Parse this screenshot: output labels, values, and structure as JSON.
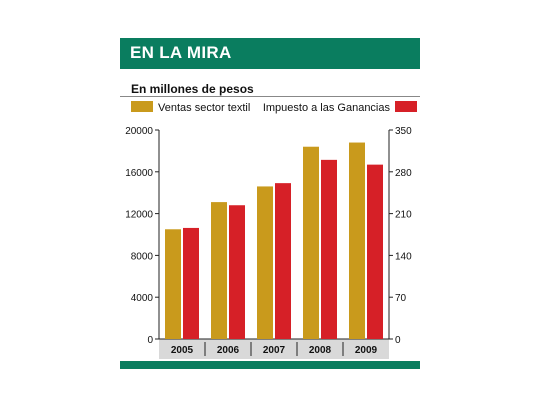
{
  "header": {
    "title": "EN LA MIRA"
  },
  "subtitle": "En millones de pesos",
  "colors": {
    "header": "#0a7d5f",
    "series1": "#c99a1c",
    "series2": "#d62027"
  },
  "chart_data": {
    "type": "bar",
    "title": "EN LA MIRA",
    "subtitle": "En millones de pesos",
    "categories": [
      "2005",
      "2006",
      "2007",
      "2008",
      "2009"
    ],
    "series": [
      {
        "name": "Ventas sector textil",
        "axis": "left",
        "color": "#c99a1c",
        "values": [
          10500,
          13100,
          14600,
          18400,
          18800
        ]
      },
      {
        "name": "Impuesto a las Ganancias",
        "axis": "right",
        "color": "#d62027",
        "values": [
          186,
          224,
          261,
          300,
          292
        ]
      }
    ],
    "ylim_left": [
      0,
      20000
    ],
    "yticks_left": [
      "0",
      "4000",
      "8000",
      "12000",
      "16000",
      "20000"
    ],
    "ylim_right": [
      0,
      350
    ],
    "yticks_right": [
      "0",
      "70",
      "140",
      "210",
      "280",
      "350"
    ],
    "legend_position": "top",
    "grid": false
  }
}
